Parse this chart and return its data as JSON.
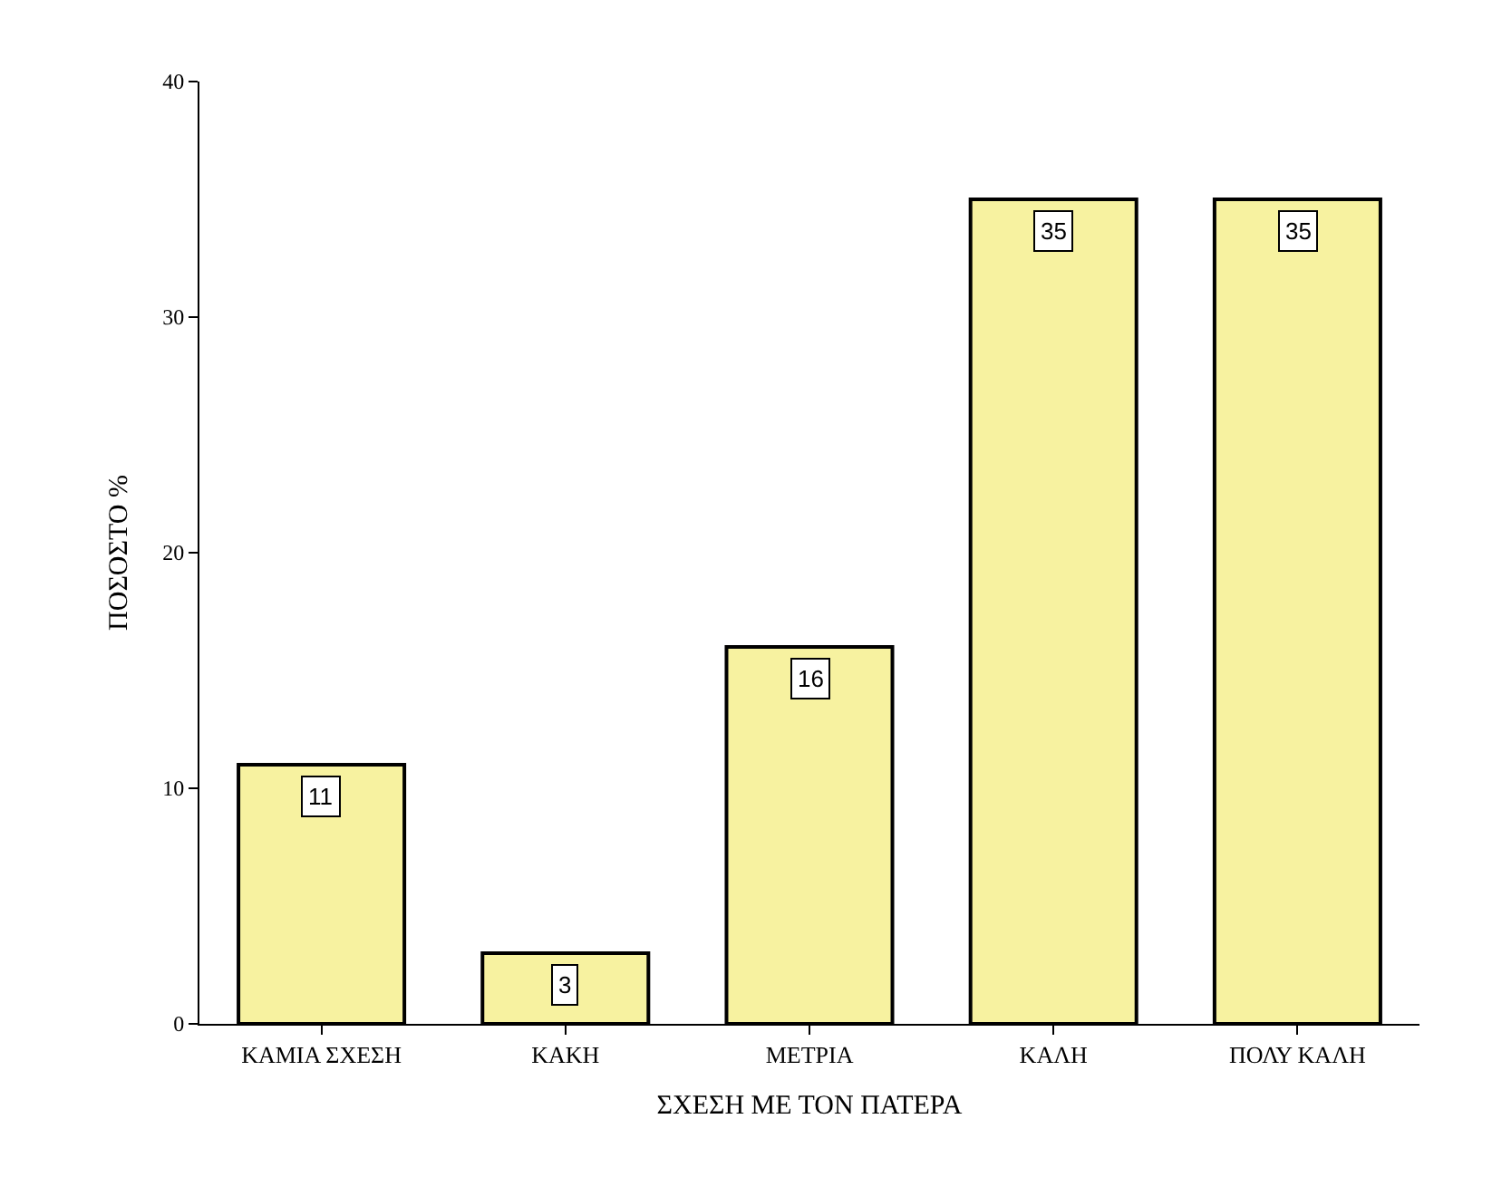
{
  "chart_data": {
    "type": "bar",
    "xlabel": "ΣΧΕΣΗ ΜΕ ΤΟΝ ΠΑΤΕΡΑ",
    "ylabel": "ΠΟΣΟΣΤΟ %",
    "categories": [
      "ΚΑΜΙΑ ΣΧΕΣΗ",
      "ΚΑΚΗ",
      "ΜΕΤΡΙΑ",
      "ΚΑΛΗ",
      "ΠΟΛΥ ΚΑΛΗ"
    ],
    "values": [
      11,
      3,
      16,
      35,
      35
    ],
    "color": "#f7f2a0",
    "ylim": [
      0,
      40
    ],
    "yticks": [
      0,
      10,
      20,
      30,
      40
    ],
    "data_labels": true,
    "legend": false
  }
}
